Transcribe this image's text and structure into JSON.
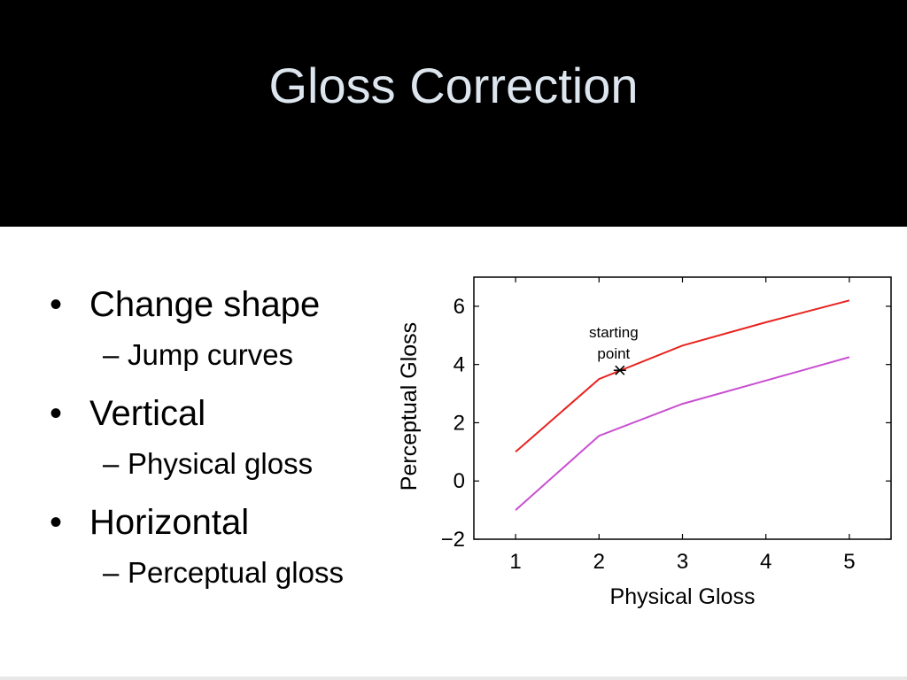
{
  "slide": {
    "title": "Gloss Correction"
  },
  "bullets": [
    {
      "text": "Change shape",
      "sub": "Jump curves"
    },
    {
      "text": "Vertical",
      "sub": "Physical gloss"
    },
    {
      "text": "Horizontal",
      "sub": "Perceptual gloss"
    }
  ],
  "glyphs": {
    "bullet": "•",
    "dash": "–"
  },
  "chart_data": {
    "type": "line",
    "xlabel": "Physical Gloss",
    "ylabel": "Perceptual Gloss",
    "xlim": [
      0.5,
      5.5
    ],
    "ylim": [
      -2,
      7
    ],
    "xticks": [
      1,
      2,
      3,
      4,
      5
    ],
    "yticks": [
      -2,
      0,
      2,
      4,
      6
    ],
    "ytick_labels": [
      "−2",
      "0",
      "2",
      "4",
      "6"
    ],
    "grid": false,
    "series": [
      {
        "color": "#e8231f",
        "x": [
          1,
          2,
          3,
          4,
          5
        ],
        "y": [
          1.0,
          3.5,
          4.65,
          5.45,
          6.2
        ]
      },
      {
        "color": "#c84fd1",
        "x": [
          1,
          2,
          3,
          4,
          5
        ],
        "y": [
          -1.0,
          1.55,
          2.65,
          3.45,
          4.25
        ]
      }
    ],
    "annotation": {
      "lines": [
        "starting",
        "point"
      ],
      "x": 2.25,
      "y": 3.8,
      "marker": "star"
    }
  }
}
